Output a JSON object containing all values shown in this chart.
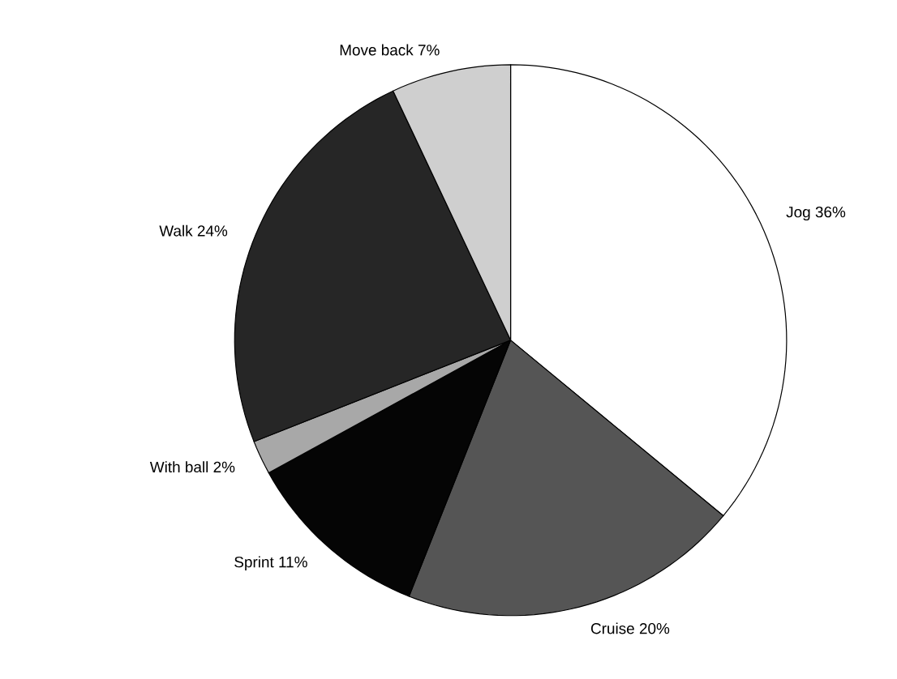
{
  "chart_data": {
    "type": "pie",
    "categories": [
      "Jog",
      "Cruise",
      "Sprint",
      "With ball",
      "Walk",
      "Move back"
    ],
    "values": [
      36,
      20,
      11,
      2,
      24,
      7
    ],
    "colors": [
      "#ffffff",
      "#555555",
      "#050505",
      "#a8a8a8",
      "#262626",
      "#cfcfcf"
    ],
    "value_labels": [
      "36%",
      "20%",
      "11%",
      "2%",
      "24%",
      "7%"
    ]
  }
}
